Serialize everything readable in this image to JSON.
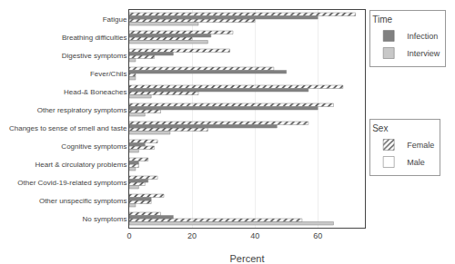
{
  "chart_data": {
    "type": "bar",
    "orientation": "horizontal",
    "xlabel": "Percent",
    "categories": [
      "Fatigue",
      "Breathing difficulties",
      "Digestive symptoms",
      "Fever/Chils",
      "Head-& Boneaches",
      "Other respiratory symptoms",
      "Changes to sense of smell and taste",
      "Cognitive symptoms",
      "Heart & circulatory problems",
      "Other Covid-19-related symptoms",
      "Other unspecific symptoms",
      "No symptoms"
    ],
    "series": [
      {
        "time": "Infection",
        "sex": "Female",
        "color": "#808080",
        "marker": "hatched",
        "values": [
          72,
          33,
          32,
          46,
          68,
          65,
          57,
          9,
          6,
          9,
          11,
          10
        ]
      },
      {
        "time": "Infection",
        "sex": "Male",
        "color": "#808080",
        "marker": "solid",
        "values": [
          60,
          26,
          14,
          50,
          57,
          60,
          47,
          5,
          3,
          6,
          7,
          14
        ]
      },
      {
        "time": "Interview",
        "sex": "Female",
        "color": "#c8c8c8",
        "marker": "hatched",
        "values": [
          40,
          20,
          8,
          2,
          22,
          10,
          25,
          8,
          3,
          5,
          7,
          55
        ]
      },
      {
        "time": "Interview",
        "sex": "Male",
        "color": "#c8c8c8",
        "marker": "solid",
        "values": [
          22,
          25,
          2,
          2,
          7,
          5,
          13,
          3,
          2,
          3,
          2,
          65
        ]
      }
    ],
    "legend_groups": [
      {
        "title": "Time",
        "entries": [
          {
            "name": "Infection",
            "color": "#808080"
          },
          {
            "name": "Interview",
            "color": "#c8c8c8"
          }
        ]
      },
      {
        "title": "Sex",
        "entries": [
          {
            "name": "Female",
            "marker": "hatched"
          },
          {
            "name": "Male",
            "marker": "solid"
          }
        ]
      }
    ],
    "xlim": [
      0,
      75
    ],
    "xticks": [
      0,
      20,
      40,
      60
    ],
    "grid": true
  }
}
